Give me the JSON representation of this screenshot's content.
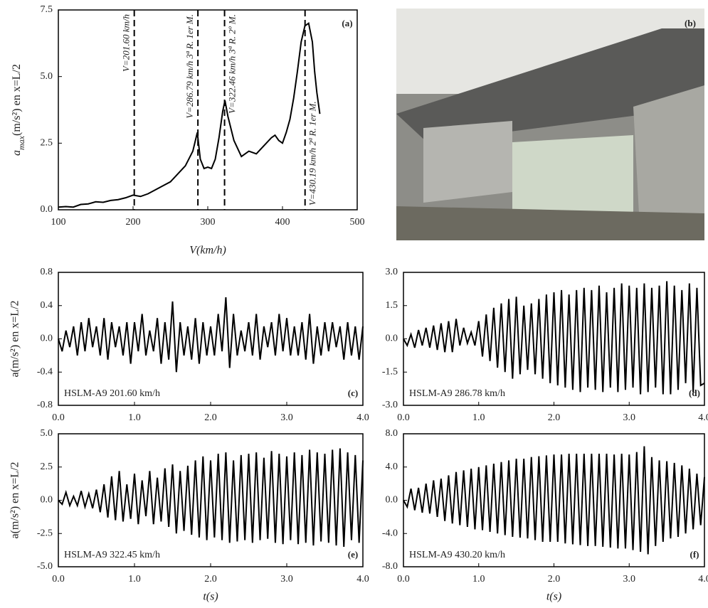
{
  "photo": {
    "label": "(b)"
  },
  "chart_data": [
    {
      "type": "line",
      "panel": "(a)",
      "y_label": {
        "symbol": "a",
        "sub": "max",
        "rest": "(m/s²) en x=L/2"
      },
      "x_label": "V(km/h)",
      "xlim": [
        100,
        500
      ],
      "xticks": [
        100,
        200,
        300,
        400,
        500
      ],
      "ylim": [
        0,
        7.5
      ],
      "yticks": [
        {
          "value": 0,
          "label": "0.0"
        },
        2.5,
        {
          "value": 5,
          "label": "5.0"
        },
        7.5
      ],
      "x": [
        100,
        110,
        120,
        130,
        140,
        150,
        160,
        170,
        180,
        190,
        200,
        210,
        220,
        230,
        240,
        250,
        260,
        270,
        280,
        286,
        290,
        295,
        300,
        305,
        310,
        315,
        320,
        323,
        327,
        335,
        345,
        355,
        365,
        375,
        385,
        390,
        395,
        400,
        405,
        410,
        415,
        420,
        425,
        430,
        435,
        440,
        443,
        446,
        450
      ],
      "series": [
        {
          "color": "#000000",
          "values": [
            0.1,
            0.12,
            0.1,
            0.2,
            0.22,
            0.3,
            0.28,
            0.35,
            0.38,
            0.45,
            0.55,
            0.5,
            0.6,
            0.75,
            0.9,
            1.05,
            1.35,
            1.65,
            2.2,
            2.9,
            1.9,
            1.55,
            1.6,
            1.55,
            1.9,
            2.7,
            3.7,
            4.1,
            3.5,
            2.6,
            2.0,
            2.2,
            2.1,
            2.4,
            2.7,
            2.8,
            2.6,
            2.5,
            2.9,
            3.4,
            4.2,
            5.2,
            6.3,
            6.9,
            7.0,
            6.3,
            5.2,
            4.4,
            3.6
          ]
        }
      ],
      "vlines": [
        {
          "x": 201.6,
          "label": "V=201.60 km/h"
        },
        {
          "x": 286.79,
          "label": "V=286.79 km/h 3ª R. 1er M."
        },
        {
          "x": 322.46,
          "label": "V=322.46 km/h 3ª R. 2º M."
        },
        {
          "x": 430.19,
          "label": "V=430.19 km/h 2ª R. 1er M."
        }
      ]
    },
    {
      "type": "line",
      "panel": "(c)",
      "annotation": "HSLM-A9 201.60 km/h",
      "y_label": "a(m/s²) en x=L/2",
      "xlim": [
        0,
        4
      ],
      "xticks": [
        {
          "value": 0,
          "label": "0.0"
        },
        {
          "value": 1,
          "label": "1.0"
        },
        {
          "value": 2,
          "label": "2.0"
        },
        {
          "value": 3,
          "label": "3.0"
        },
        {
          "value": 4,
          "label": "4.0"
        }
      ],
      "ylim": [
        -0.8,
        0.8
      ],
      "yticks": [
        -0.8,
        -0.4,
        {
          "value": 0,
          "label": "0.0"
        },
        0.4,
        0.8
      ],
      "x": [
        0,
        0.05,
        0.1,
        0.15,
        0.2,
        0.25,
        0.3,
        0.35,
        0.4,
        0.45,
        0.5,
        0.55,
        0.6,
        0.65,
        0.7,
        0.75,
        0.8,
        0.85,
        0.9,
        0.95,
        1,
        1.05,
        1.1,
        1.15,
        1.2,
        1.25,
        1.3,
        1.35,
        1.4,
        1.45,
        1.5,
        1.55,
        1.6,
        1.65,
        1.7,
        1.75,
        1.8,
        1.85,
        1.9,
        1.95,
        2,
        2.05,
        2.1,
        2.15,
        2.2,
        2.25,
        2.3,
        2.35,
        2.4,
        2.45,
        2.5,
        2.55,
        2.6,
        2.65,
        2.7,
        2.75,
        2.8,
        2.85,
        2.9,
        2.95,
        3,
        3.05,
        3.1,
        3.15,
        3.2,
        3.25,
        3.3,
        3.35,
        3.4,
        3.45,
        3.5,
        3.55,
        3.6,
        3.65,
        3.7,
        3.75,
        3.8,
        3.85,
        3.9,
        3.95,
        4
      ],
      "series": [
        {
          "color": "#000000",
          "values": [
            0,
            -0.15,
            0.1,
            -0.1,
            0.15,
            -0.2,
            0.2,
            -0.15,
            0.25,
            -0.1,
            0.15,
            -0.2,
            0.25,
            -0.25,
            0.2,
            -0.1,
            0.15,
            -0.2,
            0.2,
            -0.3,
            0.2,
            -0.15,
            0.3,
            -0.2,
            0.1,
            -0.15,
            0.25,
            -0.3,
            0.2,
            -0.25,
            0.45,
            -0.4,
            0.2,
            -0.2,
            0.15,
            -0.25,
            0.25,
            -0.3,
            0.2,
            -0.2,
            0.15,
            -0.2,
            0.3,
            -0.15,
            0.5,
            -0.35,
            0.3,
            -0.2,
            0.1,
            -0.15,
            0.2,
            -0.2,
            0.3,
            -0.25,
            0.15,
            -0.1,
            0.2,
            -0.2,
            0.3,
            -0.15,
            0.25,
            -0.2,
            0.15,
            -0.2,
            0.2,
            -0.25,
            0.3,
            -0.3,
            0.15,
            -0.2,
            0.2,
            -0.15,
            0.2,
            -0.1,
            0.15,
            -0.25,
            0.2,
            -0.2,
            0.15,
            -0.25,
            0.15
          ]
        }
      ]
    },
    {
      "type": "line",
      "panel": "(d)",
      "annotation": "HSLM-A9 286.78 km/h",
      "xlim": [
        0,
        4
      ],
      "xticks": [
        {
          "value": 0,
          "label": "0.0"
        },
        {
          "value": 1,
          "label": "1.0"
        },
        {
          "value": 2,
          "label": "2.0"
        },
        {
          "value": 3,
          "label": "3.0"
        },
        {
          "value": 4,
          "label": "4.0"
        }
      ],
      "ylim": [
        -3,
        3
      ],
      "yticks": [
        {
          "value": -3,
          "label": "-3.0"
        },
        -1.5,
        {
          "value": 0,
          "label": "0.0"
        },
        1.5,
        {
          "value": 3,
          "label": "3.0"
        }
      ],
      "x": [
        0,
        0.05,
        0.1,
        0.15,
        0.2,
        0.25,
        0.3,
        0.35,
        0.4,
        0.45,
        0.5,
        0.55,
        0.6,
        0.65,
        0.7,
        0.75,
        0.8,
        0.85,
        0.9,
        0.95,
        1,
        1.05,
        1.1,
        1.15,
        1.2,
        1.25,
        1.3,
        1.35,
        1.4,
        1.45,
        1.5,
        1.55,
        1.6,
        1.65,
        1.7,
        1.75,
        1.8,
        1.85,
        1.9,
        1.95,
        2,
        2.05,
        2.1,
        2.15,
        2.2,
        2.25,
        2.3,
        2.35,
        2.4,
        2.45,
        2.5,
        2.55,
        2.6,
        2.65,
        2.7,
        2.75,
        2.8,
        2.85,
        2.9,
        2.95,
        3,
        3.05,
        3.1,
        3.15,
        3.2,
        3.25,
        3.3,
        3.35,
        3.4,
        3.45,
        3.5,
        3.55,
        3.6,
        3.65,
        3.7,
        3.75,
        3.8,
        3.85,
        3.9,
        3.95,
        4
      ],
      "series": [
        {
          "color": "#000000",
          "values": [
            0,
            -0.3,
            0.2,
            -0.4,
            0.4,
            -0.3,
            0.5,
            -0.4,
            0.6,
            -0.5,
            0.7,
            -0.6,
            0.8,
            -0.6,
            0.9,
            -0.3,
            0.5,
            -0.2,
            0.3,
            -0.3,
            0.8,
            -0.8,
            1.1,
            -1.0,
            1.4,
            -1.3,
            1.6,
            -1.5,
            1.8,
            -1.8,
            1.9,
            -1.6,
            1.5,
            -1.4,
            1.6,
            -1.6,
            1.8,
            -1.8,
            2.0,
            -2.0,
            2.1,
            -2.1,
            2.2,
            -2.2,
            2.0,
            -2.3,
            2.2,
            -2.4,
            2.3,
            -2.2,
            2.2,
            -2.3,
            2.4,
            -2.4,
            2.1,
            -2.2,
            2.3,
            -2.4,
            2.5,
            -2.3,
            2.4,
            -2.2,
            2.3,
            -2.5,
            2.5,
            -2.4,
            2.3,
            -2.2,
            2.4,
            -2.5,
            2.6,
            -2.5,
            2.4,
            -2.3,
            2.2,
            -2.0,
            2.5,
            -2.4,
            2.3,
            -2.1,
            -2.0
          ]
        }
      ]
    },
    {
      "type": "line",
      "panel": "(e)",
      "annotation": "HSLM-A9 322.45 km/h",
      "y_label": "a(m/s²) en x=L/2",
      "x_label": "t(s)",
      "xlim": [
        0,
        4
      ],
      "xticks": [
        {
          "value": 0,
          "label": "0.0"
        },
        {
          "value": 1,
          "label": "1.0"
        },
        {
          "value": 2,
          "label": "2.0"
        },
        {
          "value": 3,
          "label": "3.0"
        },
        {
          "value": 4,
          "label": "4.0"
        }
      ],
      "ylim": [
        -5,
        5
      ],
      "yticks": [
        {
          "value": -5,
          "label": "-5.0"
        },
        -2.5,
        {
          "value": 0,
          "label": "0.0"
        },
        2.5,
        {
          "value": 5,
          "label": "5.0"
        }
      ],
      "x": [
        0,
        0.05,
        0.1,
        0.15,
        0.2,
        0.25,
        0.3,
        0.35,
        0.4,
        0.45,
        0.5,
        0.55,
        0.6,
        0.65,
        0.7,
        0.75,
        0.8,
        0.85,
        0.9,
        0.95,
        1,
        1.05,
        1.1,
        1.15,
        1.2,
        1.25,
        1.3,
        1.35,
        1.4,
        1.45,
        1.5,
        1.55,
        1.6,
        1.65,
        1.7,
        1.75,
        1.8,
        1.85,
        1.9,
        1.95,
        2,
        2.05,
        2.1,
        2.15,
        2.2,
        2.25,
        2.3,
        2.35,
        2.4,
        2.45,
        2.5,
        2.55,
        2.6,
        2.65,
        2.7,
        2.75,
        2.8,
        2.85,
        2.9,
        2.95,
        3,
        3.05,
        3.1,
        3.15,
        3.2,
        3.25,
        3.3,
        3.35,
        3.4,
        3.45,
        3.5,
        3.55,
        3.6,
        3.65,
        3.7,
        3.75,
        3.8,
        3.85,
        3.9,
        3.95,
        4
      ],
      "series": [
        {
          "color": "#000000",
          "values": [
            0,
            -0.3,
            0.6,
            -0.4,
            0.3,
            -0.4,
            0.7,
            -0.5,
            0.5,
            -0.6,
            0.8,
            -0.9,
            1.2,
            -1.3,
            1.8,
            -1.5,
            2.2,
            -1.6,
            1.2,
            -1.4,
            2.0,
            -1.8,
            1.5,
            -1.2,
            2.2,
            -1.8,
            1.7,
            -1.6,
            2.4,
            -2.0,
            2.7,
            -2.5,
            2.2,
            -2.3,
            2.6,
            -2.6,
            3.0,
            -2.8,
            3.3,
            -3.0,
            3.0,
            -2.8,
            3.5,
            -3.0,
            3.6,
            -3.2,
            3.0,
            -3.1,
            3.4,
            -3.0,
            3.5,
            -3.2,
            3.6,
            -3.0,
            3.2,
            -2.9,
            3.7,
            -3.2,
            3.5,
            -3.3,
            3.3,
            -3.0,
            3.6,
            -3.3,
            3.4,
            -3.2,
            3.8,
            -3.4,
            3.6,
            -3.1,
            3.5,
            -3.2,
            3.8,
            -3.4,
            3.9,
            -3.5,
            3.6,
            -3.0,
            3.4,
            -3.2,
            3.0
          ]
        }
      ]
    },
    {
      "type": "line",
      "panel": "(f)",
      "annotation": "HSLM-A9 430.20 km/h",
      "x_label": "t(s)",
      "xlim": [
        0,
        4
      ],
      "xticks": [
        {
          "value": 0,
          "label": "0.0"
        },
        {
          "value": 1,
          "label": "1.0"
        },
        {
          "value": 2,
          "label": "2.0"
        },
        {
          "value": 3,
          "label": "3.0"
        },
        {
          "value": 4,
          "label": "4.0"
        }
      ],
      "ylim": [
        -8,
        8
      ],
      "yticks": [
        {
          "value": -8,
          "label": "-8.0"
        },
        {
          "value": -4,
          "label": "-4.0"
        },
        {
          "value": 0,
          "label": "0.0"
        },
        {
          "value": 4,
          "label": "4.0"
        },
        {
          "value": 8,
          "label": "8.0"
        }
      ],
      "x": [
        0,
        0.05,
        0.1,
        0.15,
        0.2,
        0.25,
        0.3,
        0.35,
        0.4,
        0.45,
        0.5,
        0.55,
        0.6,
        0.65,
        0.7,
        0.75,
        0.8,
        0.85,
        0.9,
        0.95,
        1,
        1.05,
        1.1,
        1.15,
        1.2,
        1.25,
        1.3,
        1.35,
        1.4,
        1.45,
        1.5,
        1.55,
        1.6,
        1.65,
        1.7,
        1.75,
        1.8,
        1.85,
        1.9,
        1.95,
        2,
        2.05,
        2.1,
        2.15,
        2.2,
        2.25,
        2.3,
        2.35,
        2.4,
        2.45,
        2.5,
        2.55,
        2.6,
        2.65,
        2.7,
        2.75,
        2.8,
        2.85,
        2.9,
        2.95,
        3,
        3.05,
        3.1,
        3.15,
        3.2,
        3.25,
        3.3,
        3.35,
        3.4,
        3.45,
        3.5,
        3.55,
        3.6,
        3.65,
        3.7,
        3.75,
        3.8,
        3.85,
        3.9,
        3.95,
        4
      ],
      "series": [
        {
          "color": "#000000",
          "values": [
            0,
            -0.8,
            1.4,
            -1.2,
            1.5,
            -1.5,
            2.0,
            -1.6,
            2.4,
            -2.0,
            2.6,
            -2.5,
            3.0,
            -2.8,
            3.4,
            -3.0,
            3.6,
            -3.2,
            3.8,
            -3.5,
            4.0,
            -3.6,
            4.2,
            -3.8,
            4.4,
            -4.0,
            4.6,
            -4.2,
            4.8,
            -4.4,
            5.0,
            -4.5,
            5.0,
            -4.6,
            5.2,
            -4.8,
            5.3,
            -5.0,
            5.4,
            -5.0,
            5.5,
            -5.0,
            5.5,
            -5.2,
            5.6,
            -5.3,
            5.6,
            -5.4,
            5.6,
            -5.5,
            5.6,
            -5.5,
            5.6,
            -5.6,
            5.6,
            -5.7,
            5.5,
            -5.8,
            5.6,
            -5.8,
            5.5,
            -6.0,
            5.8,
            -6.2,
            6.5,
            -6.5,
            5.2,
            -5.5,
            4.8,
            -5.0,
            4.7,
            -4.6,
            4.5,
            -4.4,
            4.2,
            -4.0,
            3.8,
            -3.5,
            3.2,
            -3.0,
            2.8
          ]
        }
      ]
    }
  ]
}
